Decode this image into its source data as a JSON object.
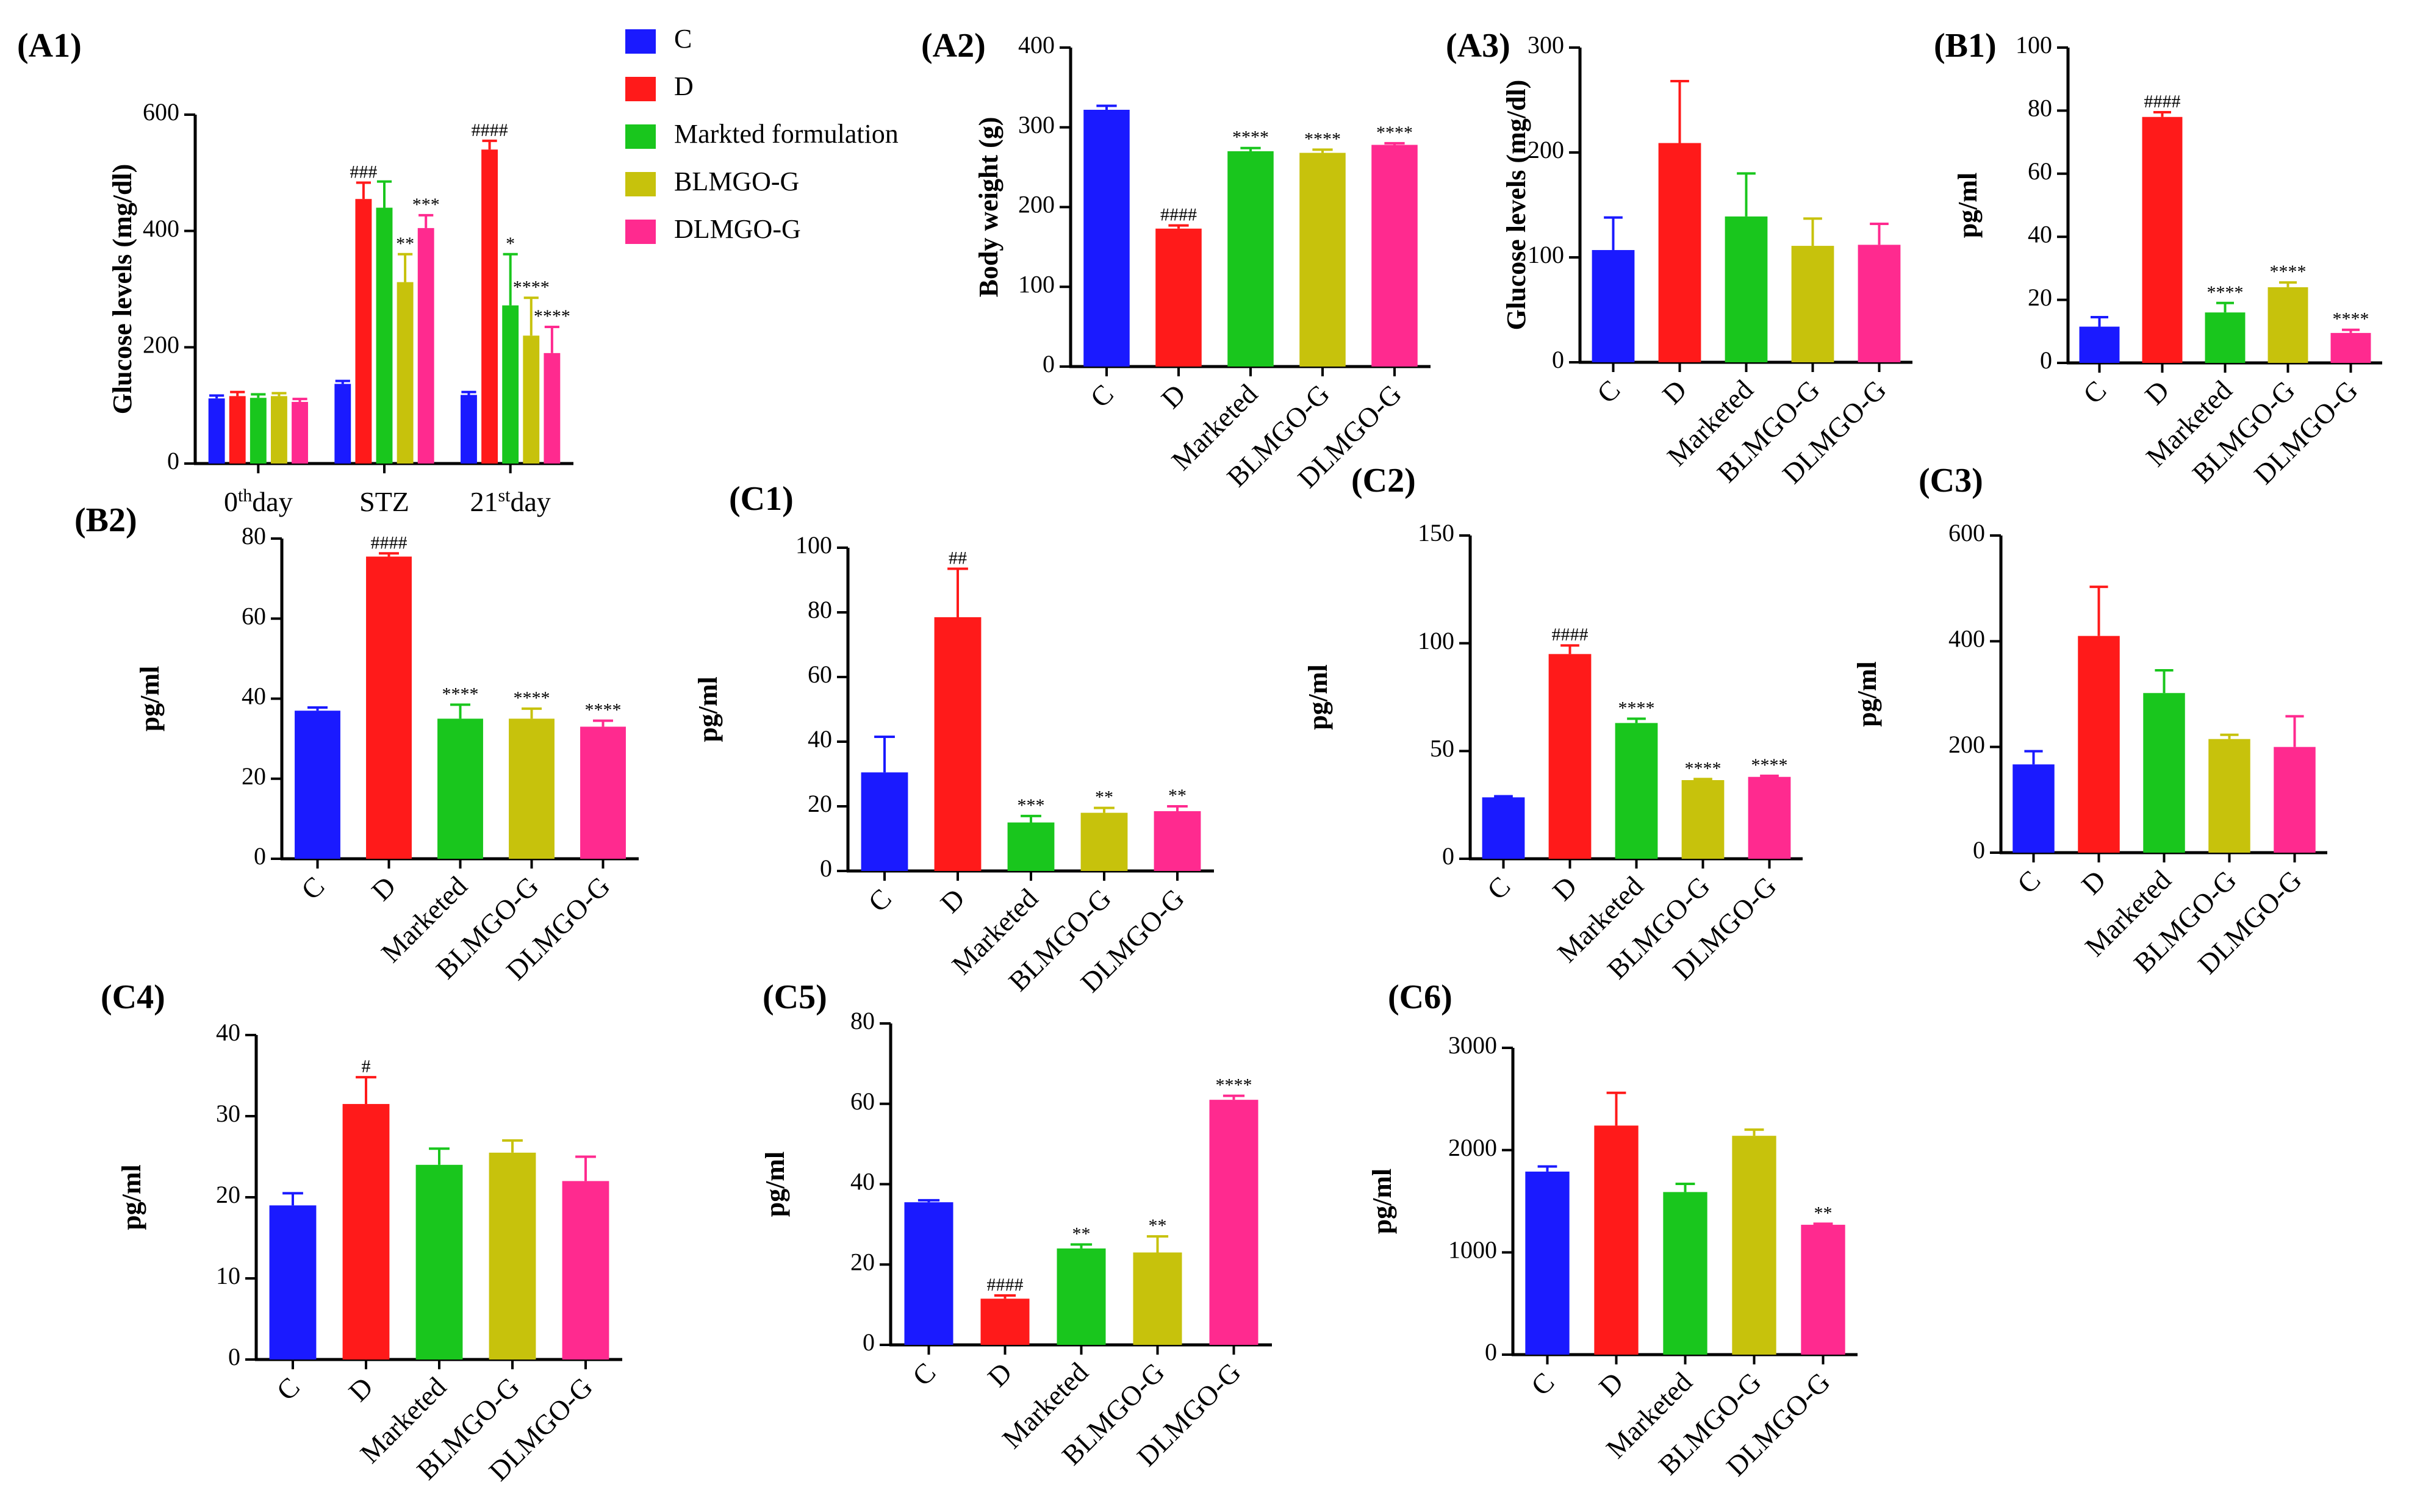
{
  "colors": {
    "C": "#1a1aff",
    "D": "#ff1a1a",
    "M": "#19c61d",
    "B": "#c7c20c",
    "DL": "#ff2a8f"
  },
  "legend": [
    {
      "label": "C",
      "color": "#1a1aff"
    },
    {
      "label": "D",
      "color": "#ff1a1a"
    },
    {
      "label": "Markted formulation",
      "color": "#19c61d"
    },
    {
      "label": "BLMGO-G",
      "color": "#c7c20c"
    },
    {
      "label": "DLMGO-G",
      "color": "#ff2a8f"
    }
  ],
  "chart_data": [
    {
      "id": "A1",
      "panel_label": "(A1)",
      "type": "bar",
      "ylabel": "Glucose levels (mg/dl)",
      "ylim": [
        0,
        600
      ],
      "yticks": [
        0,
        200,
        400,
        600
      ],
      "groups": [
        {
          "base": "0",
          "sup": "th",
          "rest": "day"
        },
        {
          "base": "STZ",
          "sup": "",
          "rest": ""
        },
        {
          "base": "21",
          "sup": "st",
          "rest": "day"
        }
      ],
      "series": [
        {
          "name": "C",
          "values": [
            112,
            137,
            118
          ],
          "errors": [
            5,
            5,
            5
          ],
          "labels": [
            "",
            "",
            ""
          ]
        },
        {
          "name": "D",
          "values": [
            116,
            455,
            540
          ],
          "errors": [
            7,
            28,
            15
          ],
          "labels": [
            "",
            "###",
            "####"
          ]
        },
        {
          "name": "Markted formulation",
          "values": [
            113,
            440,
            272
          ],
          "errors": [
            6,
            45,
            88
          ],
          "labels": [
            "",
            "",
            "*"
          ]
        },
        {
          "name": "BLMGO-G",
          "values": [
            116,
            312,
            220
          ],
          "errors": [
            5,
            48,
            65
          ],
          "labels": [
            "",
            "**",
            "****"
          ]
        },
        {
          "name": "DLMGO-G",
          "values": [
            106,
            405,
            190
          ],
          "errors": [
            5,
            22,
            45
          ],
          "labels": [
            "",
            "***",
            "****"
          ]
        }
      ]
    },
    {
      "id": "A2",
      "panel_label": "(A2)",
      "type": "bar",
      "ylabel": "Body weight (g)",
      "ylim": [
        0,
        400
      ],
      "yticks": [
        0,
        100,
        200,
        300,
        400
      ],
      "categories": [
        "C",
        "D",
        "Marketed",
        "BLMGO-G",
        "DLMGO-G"
      ],
      "values": [
        322,
        173,
        270,
        268,
        278
      ],
      "errors": [
        5,
        4,
        4,
        4,
        2
      ],
      "labels": [
        "",
        "####",
        "****",
        "****",
        "****"
      ]
    },
    {
      "id": "A3",
      "panel_label": "(A3)",
      "type": "bar",
      "ylabel": "Glucose levels (mg/dl)",
      "ylim": [
        0,
        300
      ],
      "yticks": [
        0,
        100,
        200,
        300
      ],
      "categories": [
        "C",
        "D",
        "Marketed",
        "BLMGO-G",
        "DLMGO-G"
      ],
      "values": [
        107,
        209,
        139,
        111,
        112
      ],
      "errors": [
        31,
        59,
        41,
        26,
        20
      ],
      "labels": [
        "",
        "",
        "",
        "",
        ""
      ]
    },
    {
      "id": "B1",
      "panel_label": "(B1)",
      "type": "bar",
      "ylabel": "pg/ml",
      "ylim": [
        0,
        100
      ],
      "yticks": [
        0,
        20,
        40,
        60,
        80,
        100
      ],
      "categories": [
        "C",
        "D",
        "Marketed",
        "BLMGO-G",
        "DLMGO-G"
      ],
      "values": [
        11.5,
        78,
        16,
        24,
        9.5
      ],
      "errors": [
        3,
        1.5,
        3,
        1.5,
        1
      ],
      "labels": [
        "",
        "####",
        "****",
        "****",
        "****"
      ]
    },
    {
      "id": "B2",
      "panel_label": "(B2)",
      "type": "bar",
      "ylabel": "pg/ml",
      "ylim": [
        0,
        80
      ],
      "yticks": [
        0,
        20,
        40,
        60,
        80
      ],
      "categories": [
        "C",
        "D",
        "Marketed",
        "BLMGO-G",
        "DLMGO-G"
      ],
      "values": [
        37,
        75.5,
        35,
        35,
        33
      ],
      "errors": [
        0.8,
        0.8,
        3.5,
        2.5,
        1.5
      ],
      "labels": [
        "",
        "####",
        "****",
        "****",
        "****"
      ]
    },
    {
      "id": "C1",
      "panel_label": "(C1)",
      "type": "bar",
      "ylabel": "pg/ml",
      "ylim": [
        0,
        100
      ],
      "yticks": [
        0,
        20,
        40,
        60,
        80,
        100
      ],
      "categories": [
        "C",
        "D",
        "Marketed",
        "BLMGO-G",
        "DLMGO-G"
      ],
      "values": [
        30.5,
        78.5,
        15,
        18,
        18.5
      ],
      "errors": [
        11,
        15,
        2,
        1.5,
        1.5
      ],
      "labels": [
        "",
        "##",
        "***",
        "**",
        "**"
      ]
    },
    {
      "id": "C2",
      "panel_label": "(C2)",
      "type": "bar",
      "ylabel": "pg/ml",
      "ylim": [
        0,
        150
      ],
      "yticks": [
        0,
        50,
        100,
        150
      ],
      "categories": [
        "C",
        "D",
        "Marketed",
        "BLMGO-G",
        "DLMGO-G"
      ],
      "values": [
        28.5,
        95,
        63,
        36.5,
        38
      ],
      "errors": [
        0.5,
        4,
        2,
        0.5,
        0.5
      ],
      "labels": [
        "",
        "####",
        "****",
        "****",
        "****"
      ]
    },
    {
      "id": "C3",
      "panel_label": "(C3)",
      "type": "bar",
      "ylabel": "pg/ml",
      "ylim": [
        0,
        600
      ],
      "yticks": [
        0,
        200,
        400,
        600
      ],
      "categories": [
        "C",
        "D",
        "Marketed",
        "BLMGO-G",
        "DLMGO-G"
      ],
      "values": [
        167,
        410,
        302,
        215,
        200
      ],
      "errors": [
        25,
        93,
        43,
        8,
        58
      ],
      "labels": [
        "",
        "",
        "",
        "",
        ""
      ]
    },
    {
      "id": "C4",
      "panel_label": "(C4)",
      "type": "bar",
      "ylabel": "pg/ml",
      "ylim": [
        0,
        40
      ],
      "yticks": [
        0,
        10,
        20,
        30,
        40
      ],
      "categories": [
        "C",
        "D",
        "Marketed",
        "BLMGO-G",
        "DLMGO-G"
      ],
      "values": [
        19,
        31.5,
        24,
        25.5,
        22
      ],
      "errors": [
        1.5,
        3.3,
        2,
        1.5,
        3
      ],
      "labels": [
        "",
        "#",
        "",
        "",
        ""
      ]
    },
    {
      "id": "C5",
      "panel_label": "(C5)",
      "type": "bar",
      "ylabel": "pg/ml",
      "ylim": [
        0,
        80
      ],
      "yticks": [
        0,
        20,
        40,
        60,
        80
      ],
      "categories": [
        "C",
        "D",
        "Marketed",
        "BLMGO-G",
        "DLMGO-G"
      ],
      "values": [
        35.5,
        11.5,
        24,
        23,
        61
      ],
      "errors": [
        0.5,
        0.8,
        1,
        4,
        1
      ],
      "labels": [
        "",
        "####",
        "**",
        "**",
        "****"
      ]
    },
    {
      "id": "C6",
      "panel_label": "(C6)",
      "type": "bar",
      "ylabel": "pg/ml",
      "ylim": [
        0,
        3000
      ],
      "yticks": [
        0,
        1000,
        2000,
        3000
      ],
      "categories": [
        "C",
        "D",
        "Marketed",
        "BLMGO-G",
        "DLMGO-G"
      ],
      "values": [
        1790,
        2240,
        1590,
        2140,
        1270
      ],
      "errors": [
        50,
        320,
        80,
        60,
        10
      ],
      "labels": [
        "",
        "",
        "",
        "",
        "**"
      ]
    }
  ]
}
